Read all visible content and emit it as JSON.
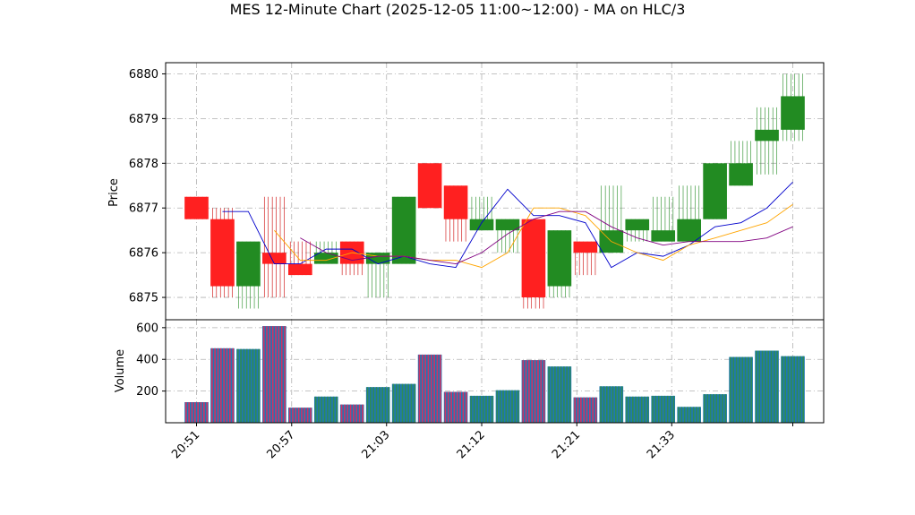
{
  "chart_data": {
    "type": "candlestick",
    "title": "MES 12-Minute Chart (2025-12-05 11:00~12:00) - MA on HLC/3",
    "price_panel": {
      "ylabel": "Price",
      "ylim": [
        6874.5,
        6880.25
      ],
      "yticks": [
        6875,
        6876,
        6877,
        6878,
        6879,
        6880
      ],
      "grid": true
    },
    "volume_panel": {
      "ylabel": "Volume",
      "ylim": [
        0,
        650
      ],
      "yticks": [
        200,
        400,
        600
      ],
      "grid": true
    },
    "x_tick_labels": [
      "20:51",
      "20:57",
      "21:03",
      "21:12",
      "21:21",
      "21:33",
      ""
    ],
    "candles": [
      {
        "open": 6877.25,
        "high": 6877.25,
        "low": 6876.75,
        "close": 6876.75,
        "volume": 130
      },
      {
        "open": 6876.75,
        "high": 6877.0,
        "low": 6875.0,
        "close": 6875.25,
        "volume": 470
      },
      {
        "open": 6875.25,
        "high": 6876.25,
        "low": 6874.75,
        "close": 6876.25,
        "volume": 465
      },
      {
        "open": 6876.0,
        "high": 6877.25,
        "low": 6875.0,
        "close": 6875.75,
        "volume": 610
      },
      {
        "open": 6875.75,
        "high": 6876.25,
        "low": 6875.5,
        "close": 6875.5,
        "volume": 95
      },
      {
        "open": 6875.75,
        "high": 6876.25,
        "low": 6875.75,
        "close": 6876.0,
        "volume": 165
      },
      {
        "open": 6876.25,
        "high": 6876.25,
        "low": 6875.5,
        "close": 6875.75,
        "volume": 115
      },
      {
        "open": 6875.75,
        "high": 6876.0,
        "low": 6875.0,
        "close": 6876.0,
        "volume": 225
      },
      {
        "open": 6875.75,
        "high": 6877.25,
        "low": 6875.75,
        "close": 6877.25,
        "volume": 245
      },
      {
        "open": 6878.0,
        "high": 6878.0,
        "low": 6877.0,
        "close": 6877.0,
        "volume": 430
      },
      {
        "open": 6877.5,
        "high": 6877.5,
        "low": 6876.25,
        "close": 6876.75,
        "volume": 195
      },
      {
        "open": 6876.5,
        "high": 6877.25,
        "low": 6876.5,
        "close": 6876.75,
        "volume": 170
      },
      {
        "open": 6876.5,
        "high": 6876.75,
        "low": 6876.0,
        "close": 6876.75,
        "volume": 205
      },
      {
        "open": 6876.75,
        "high": 6876.75,
        "low": 6874.75,
        "close": 6875.0,
        "volume": 395
      },
      {
        "open": 6875.25,
        "high": 6876.5,
        "low": 6875.0,
        "close": 6876.5,
        "volume": 355
      },
      {
        "open": 6876.25,
        "high": 6876.25,
        "low": 6875.5,
        "close": 6876.0,
        "volume": 160
      },
      {
        "open": 6876.0,
        "high": 6877.5,
        "low": 6876.0,
        "close": 6876.5,
        "volume": 230
      },
      {
        "open": 6876.5,
        "high": 6876.75,
        "low": 6876.25,
        "close": 6876.75,
        "volume": 165
      },
      {
        "open": 6876.25,
        "high": 6877.25,
        "low": 6876.25,
        "close": 6876.5,
        "volume": 170
      },
      {
        "open": 6876.25,
        "high": 6877.5,
        "low": 6876.25,
        "close": 6876.75,
        "volume": 100
      },
      {
        "open": 6876.75,
        "high": 6878.0,
        "low": 6876.75,
        "close": 6878.0,
        "volume": 180
      },
      {
        "open": 6877.5,
        "high": 6878.5,
        "low": 6877.5,
        "close": 6878.0,
        "volume": 415
      },
      {
        "open": 6878.5,
        "high": 6879.25,
        "low": 6877.75,
        "close": 6878.75,
        "volume": 455
      },
      {
        "open": 6878.75,
        "high": 6880.0,
        "low": 6878.5,
        "close": 6879.5,
        "volume": 420
      }
    ],
    "moving_averages": [
      {
        "color": "#0000cc",
        "values": [
          6876.92,
          6876.92,
          6875.75,
          6875.75,
          6876.08,
          6876.08,
          6875.75,
          6875.92,
          6875.75,
          6875.67,
          6876.67,
          6877.42,
          6876.83,
          6876.83,
          6876.67,
          6875.67,
          6876.0,
          6875.92,
          6876.17,
          6876.58,
          6876.67,
          6877.0,
          6877.58
        ]
      },
      {
        "color": "#ffa500",
        "values": [
          6876.5,
          6875.83,
          6875.83,
          6876.0,
          6875.92,
          6875.92,
          6875.83,
          6875.83,
          6875.67,
          6876.0,
          6877.0,
          6877.0,
          6876.83,
          6876.25,
          6876.0,
          6875.83,
          6876.17,
          6876.33,
          6876.5,
          6876.67,
          6877.08
        ]
      },
      {
        "color": "#800080",
        "values": [
          6876.33,
          6876.0,
          6875.83,
          6875.92,
          6875.92,
          6875.83,
          6875.75,
          6876.0,
          6876.42,
          6876.75,
          6876.92,
          6876.92,
          6876.58,
          6876.33,
          6876.17,
          6876.25,
          6876.25,
          6876.25,
          6876.33,
          6876.58
        ]
      }
    ],
    "colors": {
      "up": "#228b22",
      "down": "#ff2020",
      "wick_up": "#228b22",
      "wick_down": "#cc0000",
      "volume_bar": "#1f77b4",
      "volume_stripe_down": "#cc3366",
      "volume_stripe_up": "#2e8b57",
      "grid": "#b0b0b0"
    }
  }
}
